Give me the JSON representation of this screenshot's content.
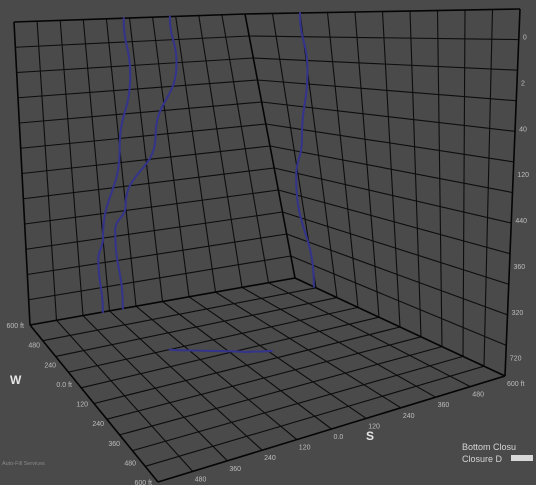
{
  "chart_data": {
    "type": "line",
    "projection": "3d-box",
    "grid": true,
    "axes": {
      "w": {
        "label": "W",
        "ticks": [
          "600 ft",
          "480",
          "240",
          "0.0 ft",
          "120",
          "240",
          "360",
          "480",
          "600 ft"
        ]
      },
      "s": {
        "label": "S",
        "ticks": [
          "600 ft",
          "480",
          "360",
          "240",
          "120",
          "0.0",
          "120",
          "240",
          "360",
          "480",
          "600 ft"
        ]
      },
      "tvd": {
        "ticks": [
          "0",
          "2",
          "40",
          "120",
          "440",
          "360",
          "320",
          "720"
        ]
      }
    },
    "series": [
      {
        "view": "back-left wall",
        "points": [
          [
            -0.05,
            1.0
          ],
          [
            -0.05,
            0.8
          ],
          [
            -0.2,
            0.55
          ],
          [
            -0.4,
            0.25
          ],
          [
            -0.45,
            0.18
          ],
          [
            -0.45,
            0.0
          ]
        ]
      },
      {
        "view": "back-left wall",
        "points": [
          [
            0.35,
            1.0
          ],
          [
            0.35,
            0.83
          ],
          [
            0.1,
            0.58
          ],
          [
            -0.2,
            0.35
          ],
          [
            -0.3,
            0.27
          ],
          [
            -0.3,
            0.0
          ]
        ]
      },
      {
        "view": "back-right wall",
        "points": [
          [
            -0.6,
            1.0
          ],
          [
            -0.6,
            0.8
          ],
          [
            -0.72,
            0.55
          ],
          [
            -0.82,
            0.4
          ],
          [
            -0.82,
            0.0
          ]
        ]
      },
      {
        "view": "floor",
        "points": [
          [
            -0.3,
            0.7
          ],
          [
            0.08,
            0.58
          ],
          [
            0.22,
            0.55
          ]
        ]
      }
    ],
    "legend": {
      "placement": "bottom-right",
      "items": [
        "Bottom Closu",
        "Closure D"
      ]
    },
    "credit": "Auto-Fill Services"
  }
}
